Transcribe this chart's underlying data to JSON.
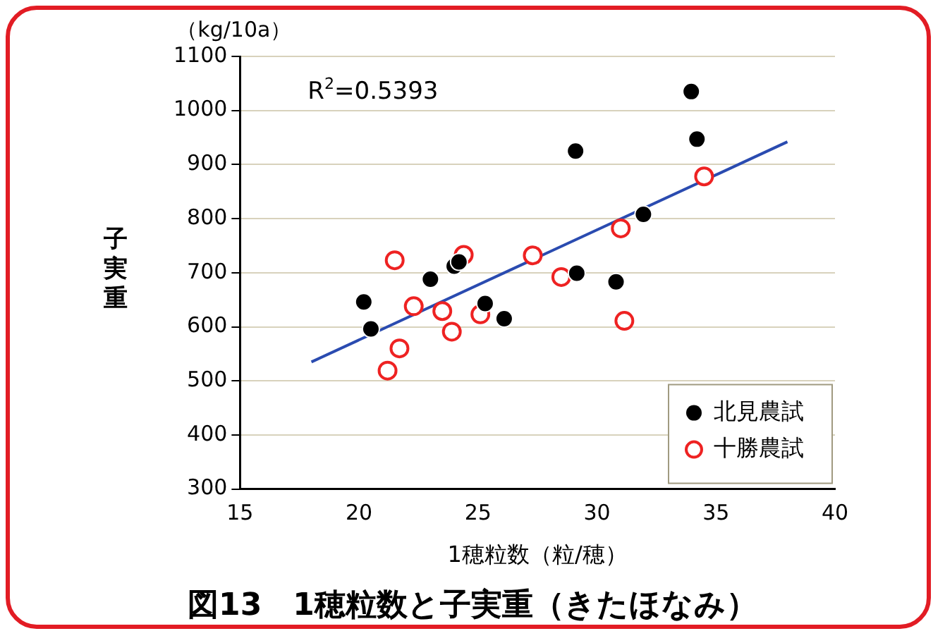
{
  "chart_data": {
    "type": "scatter",
    "title": "図13　1穂粒数と子実重（きたほなみ）",
    "xlabel": "1穂粒数（粒/穂）",
    "ylabel": "子実重",
    "annotations": [
      "（kg/10a）",
      "R$^{2}$=0.5393"
    ],
    "series": [
      {
        "name": "北見農試",
        "color": "#000000",
        "x": [
          20.2,
          20.5,
          23.0,
          24.0,
          24.2,
          25.3,
          26.1,
          29.1,
          29.15,
          30.8,
          31.95,
          33.96,
          34.2
        ],
        "values": [
          646,
          596,
          688,
          712,
          720,
          643,
          615,
          925,
          699,
          683,
          808,
          1035,
          947
        ]
      },
      {
        "name": "十勝農試",
        "color": "#ee2222",
        "x": [
          21.5,
          22.3,
          21.2,
          21.7,
          23.5,
          23.9,
          24.4,
          25.1,
          27.3,
          28.5,
          31.0,
          31.15,
          34.5
        ],
        "values": [
          723,
          638,
          519,
          560,
          629,
          591,
          733,
          623,
          732,
          692,
          782,
          611,
          878
        ]
      },
      {
        "type": "line",
        "marker": "none",
        "color": "#2a4bb0",
        "x": [
          18,
          38
        ],
        "values": [
          535,
          942
        ]
      }
    ],
    "xlim": [
      15,
      40
    ],
    "xticks": [
      15,
      20,
      25,
      30,
      35,
      40
    ],
    "ylim": [
      300,
      1100
    ],
    "yticks": [
      300,
      400,
      500,
      600,
      700,
      800,
      900,
      1000,
      1100
    ],
    "grid": "y",
    "legend": "bottom right",
    "marker": "circle"
  }
}
